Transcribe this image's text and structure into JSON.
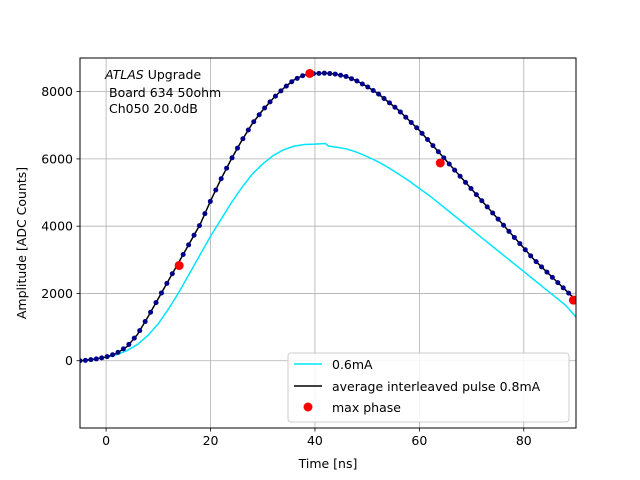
{
  "chart_data": {
    "type": "line",
    "xlabel": "Time [ns]",
    "ylabel": "Amplitude [ADC Counts]",
    "xlim": [
      -5,
      90
    ],
    "ylim": [
      -2000,
      9000
    ],
    "xticks": [
      0,
      20,
      40,
      60,
      80
    ],
    "yticks": [
      0,
      2000,
      4000,
      6000,
      8000
    ],
    "grid": true,
    "legend_position": "lower-right",
    "annotation": {
      "line1_italic": "ATLAS",
      "line1_rest": " Upgrade",
      "line2": "Board 634 50ohm",
      "line3": "Ch050 20.0dB"
    },
    "series": [
      {
        "name": "0.6mA",
        "color": "#00e5ff",
        "x": [
          -5,
          0,
          2,
          4,
          6,
          8,
          10,
          12,
          14,
          16,
          18,
          20,
          22,
          24,
          26,
          28,
          30,
          32,
          34,
          36,
          38,
          40,
          42,
          42.6,
          44,
          46,
          48,
          50,
          52,
          54,
          56,
          58,
          60,
          62,
          64,
          66,
          68,
          70,
          72,
          74,
          76,
          78,
          80,
          82,
          84,
          86,
          88,
          90
        ],
        "y": [
          0,
          100,
          180,
          300,
          480,
          750,
          1100,
          1550,
          2050,
          2600,
          3150,
          3700,
          4200,
          4700,
          5150,
          5550,
          5850,
          6100,
          6270,
          6380,
          6430,
          6440,
          6460,
          6380,
          6350,
          6300,
          6200,
          6070,
          5920,
          5750,
          5550,
          5350,
          5120,
          4900,
          4650,
          4400,
          4150,
          3900,
          3650,
          3400,
          3150,
          2900,
          2650,
          2400,
          2150,
          1900,
          1650,
          1300
        ]
      },
      {
        "name": "average interleaved pulse 0.8mA",
        "color": "#000000",
        "marker_color": "#00008b",
        "x": [
          -5,
          -4,
          -2,
          0,
          2,
          4,
          6,
          8,
          10,
          12,
          14,
          16,
          18,
          20,
          22,
          24,
          26,
          28,
          30,
          32,
          34,
          36,
          38,
          40,
          42,
          44,
          46,
          48,
          50,
          52,
          54,
          56,
          58,
          60,
          62,
          64,
          66,
          68,
          70,
          72,
          74,
          76,
          78,
          80,
          82,
          84,
          86,
          88,
          90
        ],
        "y": [
          0,
          10,
          50,
          110,
          220,
          420,
          780,
          1300,
          1850,
          2400,
          2950,
          3500,
          4050,
          4750,
          5400,
          6000,
          6550,
          7050,
          7450,
          7800,
          8100,
          8350,
          8500,
          8540,
          8550,
          8520,
          8450,
          8320,
          8150,
          7950,
          7700,
          7450,
          7150,
          6850,
          6500,
          6150,
          5800,
          5450,
          5100,
          4750,
          4400,
          4050,
          3700,
          3350,
          3000,
          2700,
          2400,
          2100,
          1800
        ]
      },
      {
        "name": "max phase",
        "color": "#ff0000",
        "x": [
          14,
          39,
          64,
          89.5
        ],
        "y": [
          2830,
          8540,
          5880,
          1800
        ]
      }
    ]
  }
}
